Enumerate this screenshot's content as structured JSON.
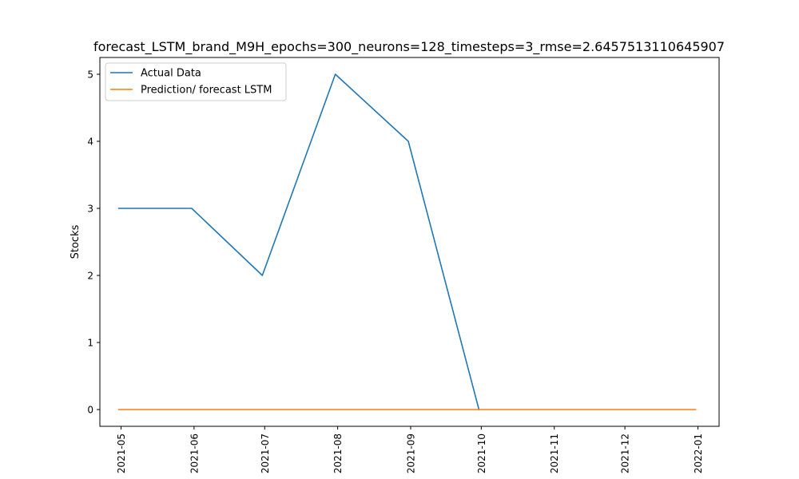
{
  "chart_data": {
    "type": "line",
    "title": "forecast_LSTM_brand_M9H_epochs=300_neurons=128_timesteps=3_rmse=2.6457513110645907",
    "xlabel": "",
    "ylabel": "Stocks",
    "x_ticks": [
      "2021-05",
      "2021-06",
      "2021-07",
      "2021-08",
      "2021-09",
      "2021-10",
      "2021-11",
      "2021-12",
      "2022-01"
    ],
    "y_ticks": [
      "0",
      "1",
      "2",
      "3",
      "4",
      "5"
    ],
    "xlim": [
      "2021-04-22",
      "2022-01-10"
    ],
    "ylim": [
      -0.25,
      5.25
    ],
    "grid": false,
    "legend_position": "upper-left",
    "series": [
      {
        "name": "Actual Data",
        "color": "#1f77b4",
        "points": [
          {
            "x": "2021-04-30",
            "y": 3
          },
          {
            "x": "2021-05-31",
            "y": 3
          },
          {
            "x": "2021-06-30",
            "y": 2
          },
          {
            "x": "2021-07-31",
            "y": 5
          },
          {
            "x": "2021-08-31",
            "y": 4
          },
          {
            "x": "2021-09-30",
            "y": 0
          }
        ]
      },
      {
        "name": "Prediction/ forecast LSTM",
        "color": "#ff7f0e",
        "points": [
          {
            "x": "2021-04-30",
            "y": 0
          },
          {
            "x": "2021-05-31",
            "y": 0
          },
          {
            "x": "2021-06-30",
            "y": 0
          },
          {
            "x": "2021-07-31",
            "y": 0
          },
          {
            "x": "2021-08-31",
            "y": 0
          },
          {
            "x": "2021-09-30",
            "y": 0
          },
          {
            "x": "2021-10-31",
            "y": 0
          },
          {
            "x": "2021-11-30",
            "y": 0
          },
          {
            "x": "2021-12-31",
            "y": 0
          }
        ]
      }
    ]
  }
}
